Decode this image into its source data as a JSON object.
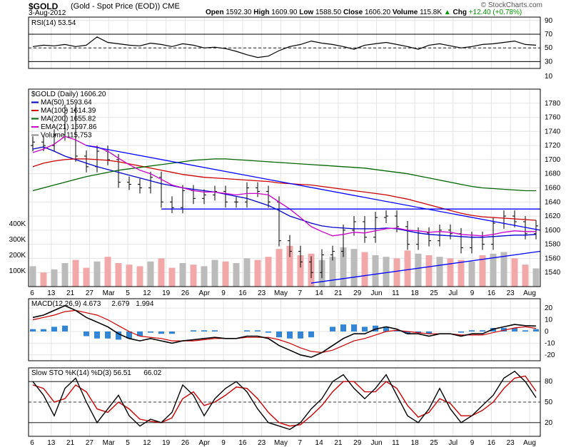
{
  "header": {
    "symbol": "$GOLD",
    "title": "(Gold - Spot Price (EOD)) CME",
    "date": "3-Aug-2012",
    "logo": "© StockCharts.com",
    "open_label": "Open",
    "open": "1592.30",
    "high_label": "High",
    "high": "1609.90",
    "low_label": "Low",
    "low": "1588.50",
    "close_label": "Close",
    "close": "1606.20",
    "volume_label": "Volume",
    "volume": "115.8K",
    "chg_label": "Chg",
    "chg": "+12.40 (+0.78%)",
    "chg_arrow": "▲"
  },
  "chart_data": [
    {
      "type": "line",
      "panel": "rsi",
      "legend": "RSI(14) 53.54",
      "ylim": [
        20,
        95
      ],
      "y_ticks": [
        90,
        70,
        50,
        30,
        10
      ],
      "reference_lines": [
        70,
        50,
        30
      ],
      "series": [
        {
          "name": "RSI(14)",
          "color": "#000000",
          "values": [
            52,
            54,
            53,
            55,
            52,
            54,
            66,
            58,
            56,
            54,
            53,
            57,
            55,
            52,
            56,
            54,
            50,
            51,
            49,
            45,
            40,
            36,
            38,
            46,
            52,
            55,
            60,
            57,
            55,
            52,
            48,
            54,
            56,
            58,
            55,
            52,
            48,
            54,
            56,
            53,
            50,
            52,
            55,
            56,
            58,
            60,
            55,
            54
          ]
        }
      ]
    },
    {
      "type": "candlestick",
      "panel": "price",
      "legend": [
        "$GOLD (Daily) 1606.20",
        "MA(50) 1593.64",
        "MA(100) 1614.39",
        "MA(200) 1655.82",
        "EMA(21) 1597.86",
        "Volume 115,753"
      ],
      "legend_colors": [
        "#000000",
        "#0000cc",
        "#cc0000",
        "#006600",
        "#cc00cc",
        "#888888"
      ],
      "ylim": [
        1520,
        1800
      ],
      "y_ticks": [
        1780,
        1760,
        1740,
        1720,
        1700,
        1680,
        1660,
        1640,
        1620,
        1600,
        1580,
        1560,
        1540
      ],
      "volume_ticks": [
        "400K",
        "300K",
        "200K",
        "100K"
      ],
      "x_labels": [
        "6",
        "13",
        "21",
        "27",
        "Mar",
        "5",
        "12",
        "19",
        "26",
        "Apr",
        "9",
        "16",
        "23",
        "May",
        "7",
        "14",
        "21",
        "29",
        "Jun",
        "11",
        "18",
        "25",
        "Jul",
        "9",
        "16",
        "23",
        "Aug"
      ],
      "close": [
        1725,
        1720,
        1735,
        1770,
        1705,
        1690,
        1712,
        1700,
        1668,
        1665,
        1660,
        1675,
        1640,
        1632,
        1656,
        1645,
        1650,
        1655,
        1640,
        1640,
        1660,
        1655,
        1640,
        1585,
        1570,
        1555,
        1540,
        1565,
        1570,
        1600,
        1612,
        1590,
        1618,
        1620,
        1605,
        1580,
        1596,
        1585,
        1600,
        1595,
        1575,
        1590,
        1580,
        1610,
        1620,
        1612,
        1595,
        1606
      ],
      "series": [
        {
          "name": "MA(50)",
          "color": "#0000cc",
          "values": [
            1715,
            1718,
            1712,
            1705,
            1700,
            1695,
            1690,
            1686,
            1682,
            1678,
            1674,
            1670,
            1666,
            1663,
            1660,
            1658,
            1656,
            1654,
            1651,
            1648,
            1645,
            1640,
            1635,
            1628,
            1620,
            1615,
            1610,
            1606,
            1604,
            1603,
            1602,
            1602,
            1602,
            1603,
            1602,
            1599,
            1596,
            1594,
            1593,
            1592,
            1591,
            1590,
            1590,
            1591,
            1592,
            1593,
            1593,
            1594
          ]
        },
        {
          "name": "MA(100)",
          "color": "#cc0000",
          "values": [
            1690,
            1695,
            1698,
            1700,
            1701,
            1701,
            1700,
            1699,
            1697,
            1694,
            1691,
            1688,
            1685,
            1682,
            1679,
            1677,
            1675,
            1674,
            1673,
            1672,
            1671,
            1670,
            1669,
            1667,
            1666,
            1665,
            1664,
            1662,
            1660,
            1658,
            1656,
            1654,
            1652,
            1650,
            1647,
            1644,
            1640,
            1636,
            1632,
            1628,
            1624,
            1621,
            1619,
            1618,
            1617,
            1616,
            1615,
            1614
          ]
        },
        {
          "name": "MA(200)",
          "color": "#006600",
          "values": [
            1656,
            1660,
            1664,
            1668,
            1672,
            1676,
            1679,
            1682,
            1685,
            1687,
            1689,
            1691,
            1693,
            1695,
            1697,
            1699,
            1700,
            1701,
            1701,
            1700,
            1699,
            1698,
            1697,
            1696,
            1695,
            1694,
            1693,
            1692,
            1691,
            1690,
            1689,
            1688,
            1686,
            1684,
            1682,
            1680,
            1677,
            1674,
            1671,
            1668,
            1665,
            1662,
            1660,
            1659,
            1658,
            1657,
            1656,
            1656
          ]
        },
        {
          "name": "EMA(21)",
          "color": "#cc00cc",
          "values": [
            1710,
            1715,
            1722,
            1733,
            1728,
            1720,
            1718,
            1712,
            1702,
            1693,
            1685,
            1680,
            1672,
            1664,
            1660,
            1656,
            1654,
            1654,
            1652,
            1650,
            1652,
            1652,
            1650,
            1640,
            1630,
            1618,
            1605,
            1598,
            1592,
            1594,
            1597,
            1596,
            1599,
            1602,
            1603,
            1600,
            1599,
            1597,
            1598,
            1597,
            1594,
            1593,
            1592,
            1594,
            1597,
            1599,
            1598,
            1598
          ]
        }
      ],
      "volume": [
        130,
        90,
        110,
        150,
        170,
        120,
        160,
        190,
        150,
        140,
        130,
        160,
        180,
        120,
        150,
        140,
        130,
        170,
        160,
        150,
        180,
        170,
        190,
        240,
        260,
        200,
        210,
        170,
        190,
        250,
        240,
        220,
        200,
        190,
        180,
        230,
        210,
        200,
        190,
        180,
        170,
        160,
        200,
        210,
        220,
        180,
        140,
        116
      ],
      "trendlines": [
        {
          "from": [
            5,
            1720
          ],
          "to": [
            47,
            1600
          ],
          "color": "#0000ff"
        },
        {
          "from": [
            12,
            1630
          ],
          "to": [
            47,
            1630
          ],
          "color": "#0000ff"
        },
        {
          "from": [
            26,
            1525
          ],
          "to": [
            47,
            1570
          ],
          "color": "#0000ff"
        }
      ]
    },
    {
      "type": "line",
      "panel": "macd",
      "legend": [
        "MACD(12,26,9) 4.673",
        "2.679",
        "1.994"
      ],
      "legend_colors": [
        "#000000",
        "#cc0000",
        "#0066cc"
      ],
      "ylim": [
        -25,
        28
      ],
      "y_ticks": [
        20,
        10,
        0,
        -10,
        -20
      ],
      "series": [
        {
          "name": "MACD(12,26,9)",
          "color": "#000000",
          "values": [
            12,
            14,
            18,
            22,
            18,
            12,
            8,
            4,
            -2,
            -6,
            -8,
            -6,
            -8,
            -10,
            -8,
            -7,
            -6,
            -5,
            -6,
            -6,
            -4,
            -4,
            -6,
            -12,
            -16,
            -20,
            -22,
            -18,
            -12,
            -6,
            -2,
            -2,
            2,
            4,
            2,
            -2,
            -2,
            -4,
            -2,
            -2,
            -4,
            -2,
            -2,
            2,
            4,
            6,
            5,
            4.673
          ]
        },
        {
          "name": "signal",
          "color": "#cc0000",
          "values": [
            10,
            12,
            14,
            17,
            18,
            16,
            14,
            10,
            5,
            0,
            -4,
            -5,
            -6,
            -8,
            -8,
            -8,
            -7,
            -6,
            -6,
            -6,
            -5,
            -5,
            -5,
            -7,
            -10,
            -14,
            -17,
            -18,
            -16,
            -12,
            -8,
            -6,
            -3,
            0,
            1,
            0,
            -1,
            -2,
            -2,
            -2,
            -3,
            -3,
            -3,
            -1,
            1,
            3,
            4,
            2.679
          ]
        },
        {
          "name": "histogram",
          "color": "#0066cc",
          "type": "bar",
          "values": [
            2,
            2,
            4,
            5,
            0,
            -4,
            -6,
            -6,
            -7,
            -6,
            -4,
            -1,
            -2,
            -2,
            0,
            1,
            1,
            1,
            0,
            0,
            1,
            1,
            -1,
            -5,
            -6,
            -6,
            -5,
            0,
            4,
            6,
            6,
            4,
            5,
            4,
            1,
            -2,
            -1,
            -2,
            0,
            0,
            -1,
            1,
            1,
            3,
            3,
            3,
            1,
            1.994
          ]
        }
      ]
    },
    {
      "type": "line",
      "panel": "stochastic",
      "legend": [
        "Slow STO %K(14) %D(3) 56.51",
        "66.02"
      ],
      "legend_colors": [
        "#000000",
        "#cc0000"
      ],
      "ylim": [
        0,
        100
      ],
      "y_ticks": [
        80,
        50,
        20
      ],
      "reference_lines": [
        80,
        50,
        20
      ],
      "series": [
        {
          "name": "%K(14)",
          "color": "#000000",
          "values": [
            80,
            60,
            30,
            70,
            85,
            50,
            20,
            40,
            60,
            30,
            15,
            25,
            20,
            35,
            75,
            60,
            30,
            55,
            70,
            80,
            65,
            40,
            20,
            15,
            10,
            20,
            40,
            55,
            80,
            90,
            70,
            55,
            70,
            90,
            60,
            30,
            20,
            40,
            70,
            40,
            20,
            30,
            45,
            60,
            85,
            95,
            80,
            56.51
          ]
        },
        {
          "name": "%D(3)",
          "color": "#cc0000",
          "values": [
            75,
            70,
            50,
            55,
            75,
            65,
            40,
            35,
            50,
            40,
            25,
            22,
            20,
            27,
            55,
            65,
            45,
            50,
            60,
            72,
            70,
            55,
            35,
            20,
            15,
            17,
            30,
            45,
            65,
            80,
            80,
            65,
            65,
            80,
            70,
            45,
            28,
            35,
            55,
            48,
            30,
            30,
            38,
            50,
            70,
            85,
            88,
            66.02
          ]
        }
      ]
    }
  ]
}
